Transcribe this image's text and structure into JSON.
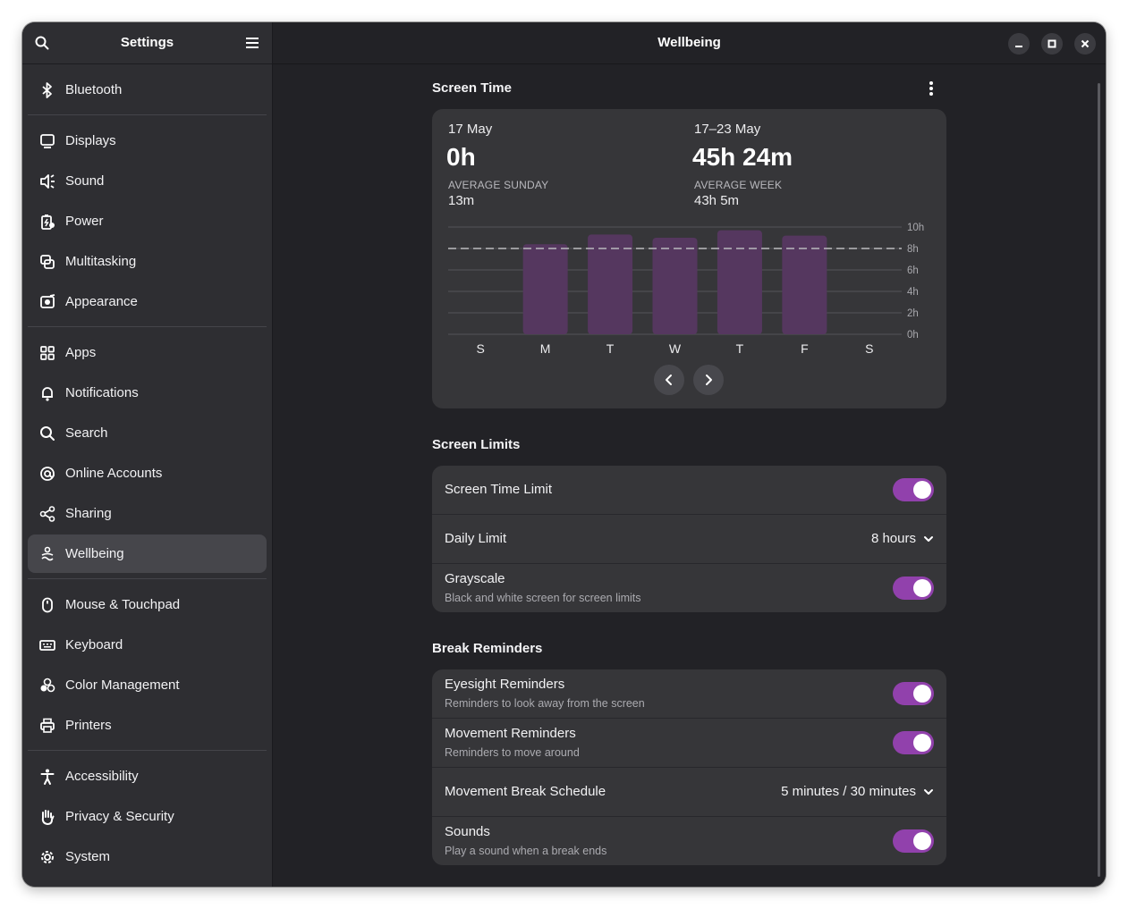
{
  "sidebar": {
    "title": "Settings",
    "groups": [
      [
        {
          "label": "Bluetooth",
          "icon": "bluetooth-icon"
        }
      ],
      [
        {
          "label": "Displays",
          "icon": "display-icon"
        },
        {
          "label": "Sound",
          "icon": "speaker-icon"
        },
        {
          "label": "Power",
          "icon": "battery-icon"
        },
        {
          "label": "Multitasking",
          "icon": "multitasking-icon"
        },
        {
          "label": "Appearance",
          "icon": "appearance-icon"
        }
      ],
      [
        {
          "label": "Apps",
          "icon": "apps-grid-icon"
        },
        {
          "label": "Notifications",
          "icon": "bell-icon"
        },
        {
          "label": "Search",
          "icon": "search-icon"
        },
        {
          "label": "Online Accounts",
          "icon": "at-sign-icon"
        },
        {
          "label": "Sharing",
          "icon": "share-icon"
        },
        {
          "label": "Wellbeing",
          "icon": "wellbeing-icon",
          "active": true
        }
      ],
      [
        {
          "label": "Mouse & Touchpad",
          "icon": "mouse-icon"
        },
        {
          "label": "Keyboard",
          "icon": "keyboard-icon"
        },
        {
          "label": "Color Management",
          "icon": "color-icon"
        },
        {
          "label": "Printers",
          "icon": "printer-icon"
        }
      ],
      [
        {
          "label": "Accessibility",
          "icon": "accessibility-icon"
        },
        {
          "label": "Privacy & Security",
          "icon": "hand-icon"
        },
        {
          "label": "System",
          "icon": "gear-icon"
        }
      ]
    ]
  },
  "header": {
    "title": "Wellbeing"
  },
  "screen_time": {
    "title": "Screen Time",
    "day": {
      "date": "17 May",
      "value": "0h",
      "caption": "AVERAGE SUNDAY",
      "average": "13m"
    },
    "week": {
      "date": "17–23 May",
      "value": "45h 24m",
      "caption": "AVERAGE WEEK",
      "average": "43h 5m"
    }
  },
  "chart_data": {
    "type": "bar",
    "categories": [
      "S",
      "M",
      "T",
      "W",
      "T",
      "F",
      "S"
    ],
    "values": [
      0,
      8.4,
      9.3,
      9.0,
      9.7,
      9.2,
      0
    ],
    "ylim": [
      0,
      10
    ],
    "y_ticks": [
      "10h",
      "8h",
      "6h",
      "4h",
      "2h",
      "0h"
    ],
    "limit_line": 8,
    "bar_color": "#55375f",
    "grid": true
  },
  "screen_limits": {
    "title": "Screen Limits",
    "time_limit_label": "Screen Time Limit",
    "daily_limit_label": "Daily Limit",
    "daily_limit_value": "8 hours",
    "grayscale_label": "Grayscale",
    "grayscale_sub": "Black and white screen for screen limits"
  },
  "break_reminders": {
    "title": "Break Reminders",
    "eyesight_label": "Eyesight Reminders",
    "eyesight_sub": "Reminders to look away from the screen",
    "movement_label": "Movement Reminders",
    "movement_sub": "Reminders to move around",
    "schedule_label": "Movement Break Schedule",
    "schedule_value": "5 minutes / 30 minutes",
    "sounds_label": "Sounds",
    "sounds_sub": "Play a sound when a break ends"
  },
  "colors": {
    "accent": "#9141ac",
    "bar": "#55375f",
    "card": "#363639",
    "sidebar": "#2e2e32"
  }
}
